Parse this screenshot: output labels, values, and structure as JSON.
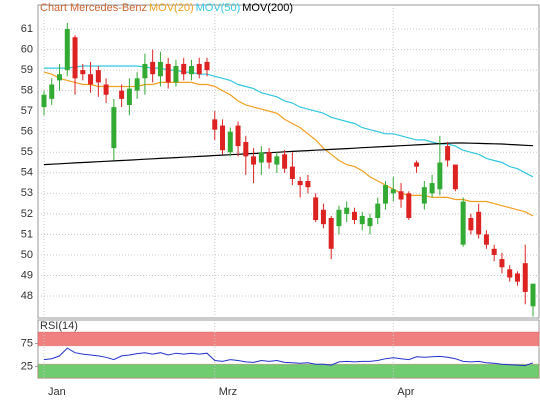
{
  "chart_data": {
    "type": "candlestick",
    "title": "Chart Mercedes-Benz",
    "categories": [
      "Jan",
      null,
      null,
      null,
      null,
      null,
      null,
      null,
      null,
      null,
      null,
      null,
      null,
      null,
      null,
      null,
      null,
      null,
      null,
      null,
      null,
      null,
      "Mrz",
      null,
      null,
      null,
      null,
      null,
      null,
      null,
      null,
      null,
      null,
      null,
      null,
      null,
      null,
      null,
      null,
      null,
      null,
      null,
      null,
      null,
      null,
      "Apr",
      null,
      null,
      null,
      null,
      null,
      null,
      null,
      null,
      null,
      null,
      null,
      null,
      null,
      null,
      null,
      null,
      null,
      null
    ],
    "open": [
      57.2,
      57.6,
      58.5,
      59,
      60.6,
      59,
      58.8,
      59,
      58.3,
      55.2,
      58,
      57.3,
      58,
      58.6,
      59.4,
      58.7,
      59.3,
      58.4,
      59.3,
      58.8,
      59.3,
      59.4,
      56.6,
      56.3,
      55,
      56.3,
      55.5,
      54.8,
      54.5,
      55,
      54.4,
      54.9,
      54.3,
      53.6,
      53.6,
      52.8,
      52.2,
      51.8,
      51.4,
      52,
      52.1,
      51.5,
      51.4,
      51.8,
      52.5,
      53,
      53.1,
      53,
      54.5,
      52.5,
      53,
      53.2,
      55.3,
      54.4,
      50.5,
      51.8,
      52.1,
      51,
      50.3,
      49.8,
      49.3,
      49.1,
      49.6,
      47.5
    ],
    "high": [
      58,
      58.6,
      59.3,
      61.3,
      60.7,
      59.3,
      59.4,
      59.2,
      58.6,
      57.6,
      58.3,
      58.6,
      58.9,
      59.8,
      60,
      59.9,
      59.6,
      59.5,
      59.6,
      59.5,
      59.6,
      59.6,
      57,
      56.6,
      56.2,
      56.5,
      55.8,
      55.2,
      55.3,
      55.2,
      55,
      55.1,
      55,
      53.8,
      53.9,
      53,
      52.5,
      51.9,
      52.4,
      52.6,
      52.3,
      52.1,
      52,
      52.8,
      53.6,
      53.8,
      53.5,
      53.1,
      54.6,
      53.6,
      53.9,
      55.8,
      55.5,
      54.4,
      52.8,
      52,
      52.5,
      51.2,
      50.5,
      50.1,
      49.5,
      49.2,
      50.5,
      48.6
    ],
    "low": [
      56.8,
      57.3,
      58,
      58.7,
      57.8,
      58.5,
      57.9,
      57.7,
      57.4,
      54.6,
      57.2,
      56.8,
      57.6,
      57.8,
      58.4,
      58.2,
      58.1,
      58.2,
      58.5,
      58.5,
      58.6,
      58.7,
      55.6,
      54.9,
      54.8,
      54.8,
      53.9,
      53.5,
      53.9,
      54.2,
      54,
      54,
      53.4,
      52.8,
      53,
      51.6,
      51.3,
      49.8,
      51,
      51.6,
      51.5,
      51.2,
      51,
      51.5,
      52.2,
      52.6,
      52.3,
      51.7,
      54,
      52.2,
      52.8,
      52.9,
      54.3,
      53.1,
      50.4,
      51,
      50.8,
      50.3,
      49.7,
      49.1,
      48.7,
      48.5,
      47.6,
      47
    ],
    "close": [
      57.8,
      58.3,
      58.8,
      61,
      58.6,
      58.8,
      58.3,
      58.4,
      57.8,
      57.2,
      57.6,
      58.1,
      58.6,
      59.3,
      58.8,
      59.4,
      58.4,
      59.2,
      58.8,
      59.2,
      58.8,
      59,
      56.1,
      55.1,
      56,
      55.3,
      54.8,
      54.4,
      55,
      54.5,
      54.8,
      54.2,
      53.7,
      53.4,
      53.3,
      51.7,
      51.5,
      50.3,
      52.2,
      52.3,
      51.7,
      51.9,
      51.8,
      52.5,
      53.4,
      53.2,
      52.7,
      51.8,
      54.3,
      53.3,
      53.5,
      54.5,
      54.6,
      53.2,
      52.6,
      51.2,
      51,
      50.5,
      50,
      49.4,
      48.9,
      48.7,
      48.2,
      48.6
    ],
    "up_color": "#33aa33",
    "down_color": "#dd2222",
    "ylim": [
      46.93,
      62.17
    ],
    "yticks": [
      48,
      49,
      50,
      51,
      52,
      53,
      54,
      55,
      56,
      57,
      58,
      59,
      60,
      61
    ],
    "grid": true,
    "series": [
      {
        "name": "MOV(20)",
        "color": "#f0a020",
        "values": [
          58.9,
          58.8,
          58.6,
          58.5,
          58.4,
          58.3,
          58.3,
          58.2,
          58.2,
          58.2,
          58.2,
          58.2,
          58.2,
          58.3,
          58.3,
          58.4,
          58.4,
          58.4,
          58.4,
          58.4,
          58.3,
          58.3,
          58.2,
          58.0,
          57.8,
          57.5,
          57.3,
          57.2,
          57.1,
          57.0,
          56.9,
          56.6,
          56.4,
          56.2,
          55.9,
          55.6,
          55.2,
          54.9,
          54.6,
          54.4,
          54.3,
          54.1,
          53.8,
          53.6,
          53.4,
          53.2,
          53.0,
          52.9,
          52.9,
          52.9,
          52.8,
          52.8,
          52.8,
          52.7,
          52.7,
          52.6,
          52.6,
          52.6,
          52.5,
          52.4,
          52.3,
          52.2,
          52.1,
          51.9
        ]
      },
      {
        "name": "MOV(50)",
        "color": "#30c8e0",
        "values": [
          59.1,
          59.1,
          59.1,
          59.1,
          59.15,
          59.2,
          59.2,
          59.2,
          59.2,
          59.2,
          59.2,
          59.2,
          59.2,
          59.15,
          59.1,
          59.1,
          59.0,
          59.0,
          58.9,
          58.9,
          58.8,
          58.8,
          58.7,
          58.6,
          58.5,
          58.3,
          58.2,
          58.1,
          57.9,
          57.8,
          57.7,
          57.5,
          57.4,
          57.2,
          57.1,
          57.0,
          56.9,
          56.7,
          56.6,
          56.5,
          56.4,
          56.2,
          56.1,
          56.0,
          55.9,
          55.9,
          55.8,
          55.7,
          55.6,
          55.6,
          55.5,
          55.4,
          55.4,
          55.3,
          55.1,
          55.0,
          54.9,
          54.7,
          54.6,
          54.5,
          54.3,
          54.2,
          54.0,
          53.8
        ]
      },
      {
        "name": "MOV(200)",
        "color": "#000000",
        "values": [
          54.4,
          54.42,
          54.44,
          54.46,
          54.48,
          54.5,
          54.52,
          54.54,
          54.56,
          54.58,
          54.6,
          54.62,
          54.64,
          54.66,
          54.68,
          54.7,
          54.72,
          54.74,
          54.76,
          54.78,
          54.8,
          54.82,
          54.84,
          54.86,
          54.88,
          54.9,
          54.92,
          54.94,
          54.96,
          54.98,
          55.0,
          55.02,
          55.04,
          55.06,
          55.08,
          55.1,
          55.12,
          55.14,
          55.16,
          55.18,
          55.2,
          55.22,
          55.24,
          55.26,
          55.28,
          55.3,
          55.32,
          55.34,
          55.36,
          55.38,
          55.4,
          55.42,
          55.44,
          55.45,
          55.45,
          55.44,
          55.43,
          55.42,
          55.41,
          55.4,
          55.38,
          55.36,
          55.34,
          55.32
        ]
      }
    ],
    "rsi": {
      "title": "RSI(14)",
      "color": "#2233cc",
      "ylim": [
        0,
        100
      ],
      "yticks": [
        25,
        75
      ],
      "bands": [
        {
          "range": [
            70,
            100
          ],
          "color": "#f08080"
        },
        {
          "range": [
            0,
            30
          ],
          "color": "#70cc70"
        }
      ],
      "values": [
        40,
        42,
        48,
        65,
        55,
        52,
        50,
        48,
        45,
        40,
        48,
        50,
        53,
        55,
        52,
        55,
        50,
        54,
        52,
        54,
        52,
        54,
        38,
        36,
        40,
        38,
        35,
        34,
        38,
        36,
        38,
        34,
        33,
        32,
        33,
        30,
        30,
        28,
        35,
        36,
        35,
        36,
        36,
        38,
        42,
        44,
        42,
        40,
        46,
        45,
        46,
        47,
        45,
        42,
        36,
        35,
        36,
        33,
        32,
        30,
        29,
        28,
        27,
        33
      ]
    }
  }
}
